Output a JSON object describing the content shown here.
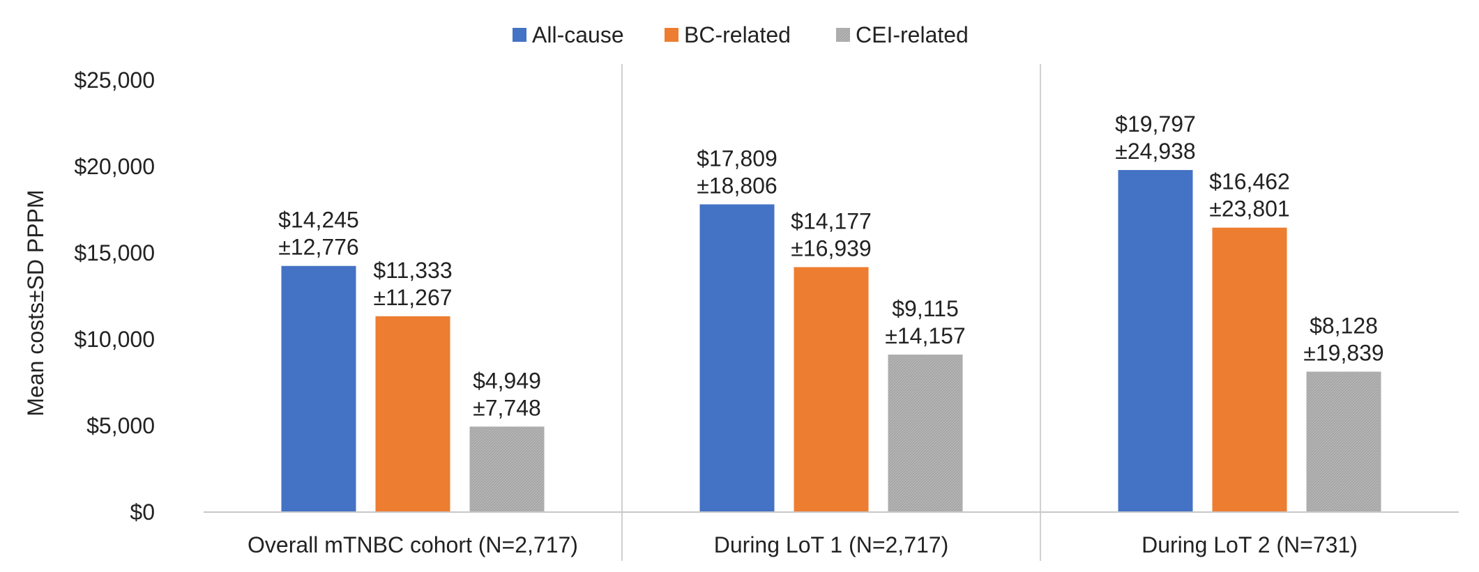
{
  "chart_data": {
    "type": "bar",
    "title": "",
    "xlabel": "",
    "ylabel": "Mean costs±SD PPPM",
    "ylim": [
      0,
      25000
    ],
    "yticks": [
      0,
      5000,
      10000,
      15000,
      20000,
      25000
    ],
    "ytick_labels": [
      "$0",
      "$5,000",
      "$10,000",
      "$15,000",
      "$20,000",
      "$25,000"
    ],
    "grid": false,
    "legend_position": "top-center",
    "categories": [
      "Overall mTNBC cohort (N=2,717)",
      "During LoT 1 (N=2,717)",
      "During LoT 2 (N=731)"
    ],
    "series": [
      {
        "name": "All-cause",
        "color": "#4472C4",
        "values": [
          14245,
          17809,
          19797
        ],
        "labels": [
          [
            "$14,245",
            "±12,776"
          ],
          [
            "$17,809",
            "±18,806"
          ],
          [
            "$19,797",
            "±24,938"
          ]
        ]
      },
      {
        "name": "BC-related",
        "color": "#ED7D31",
        "values": [
          11333,
          14177,
          16462
        ],
        "labels": [
          [
            "$11,333",
            "±11,267"
          ],
          [
            "$14,177",
            "±16,939"
          ],
          [
            "$16,462",
            "±23,801"
          ]
        ]
      },
      {
        "name": "CEI-related",
        "color": "#A5A5A5",
        "values": [
          4949,
          9115,
          8128
        ],
        "labels": [
          [
            "$4,949",
            "±7,748"
          ],
          [
            "$9,115",
            "±14,157"
          ],
          [
            "$8,128",
            "±19,839"
          ]
        ]
      }
    ]
  }
}
